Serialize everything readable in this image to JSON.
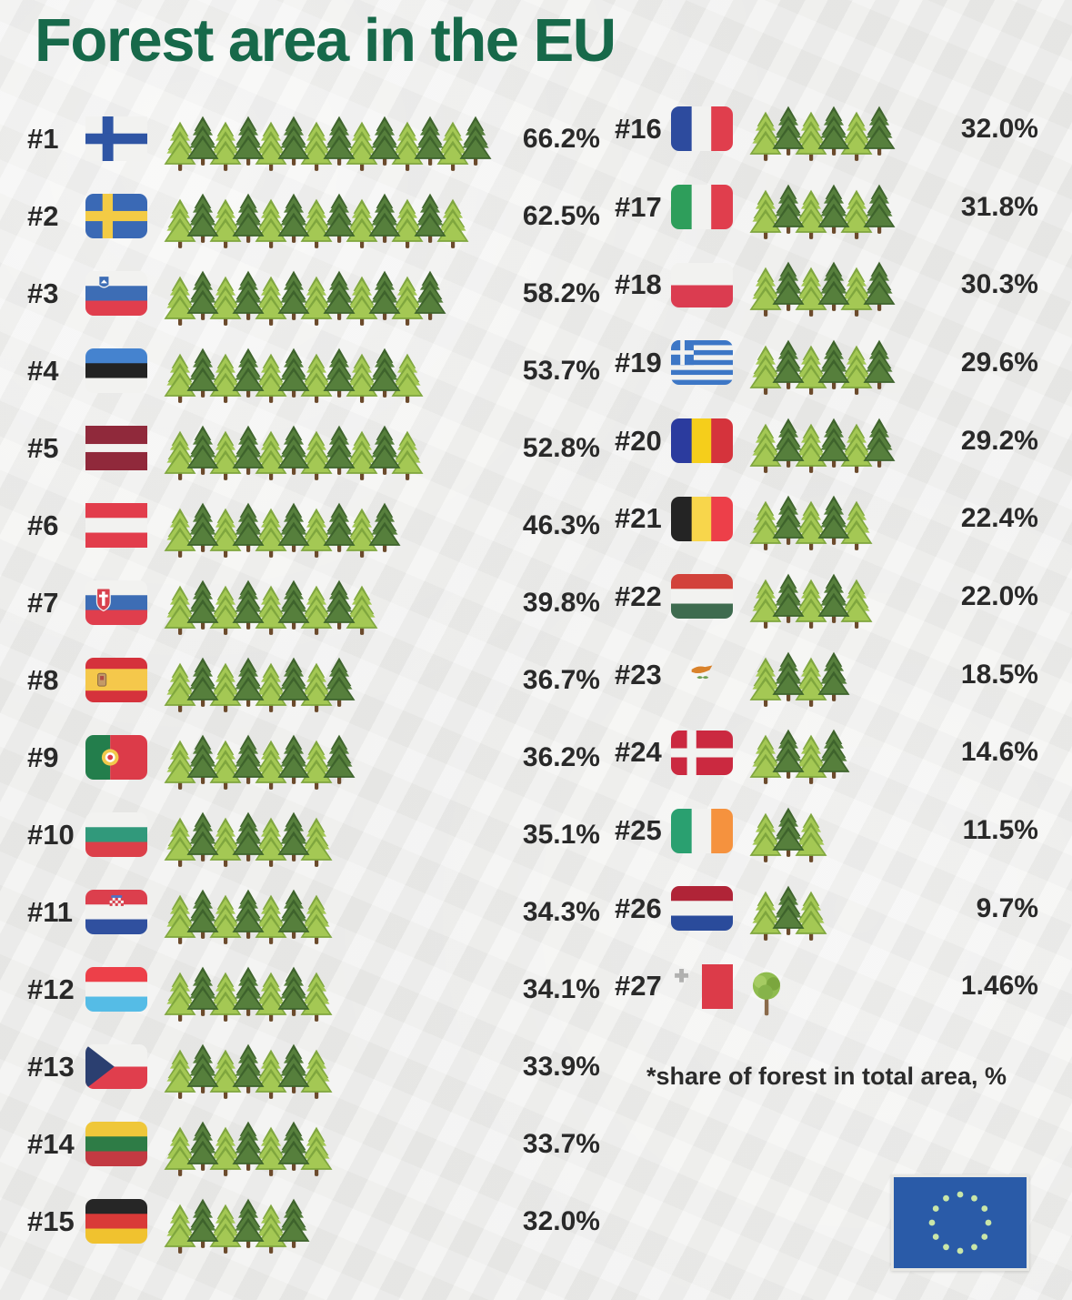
{
  "title": "Forest area in the EU",
  "footnote": "*share of forest in total area, %",
  "colors": {
    "title_green": "#17694A",
    "text_dark": "#292929",
    "background_paper": "#ECECEA",
    "eu_flag_blue": "#2A5BA8",
    "eu_star_color": "#C9E6A8",
    "tree_light_green": "#A4C854",
    "tree_dark_green": "#4F7C38"
  },
  "columns": {
    "left": [
      {
        "rank": "#1",
        "country": "Finland",
        "flag": "finland",
        "percent": "66.2%",
        "tree_count": 14,
        "tree_type": "evergreen"
      },
      {
        "rank": "#2",
        "country": "Sweden",
        "flag": "sweden",
        "percent": "62.5%",
        "tree_count": 13,
        "tree_type": "evergreen"
      },
      {
        "rank": "#3",
        "country": "Slovenia",
        "flag": "slovenia",
        "percent": "58.2%",
        "tree_count": 12,
        "tree_type": "evergreen"
      },
      {
        "rank": "#4",
        "country": "Estonia",
        "flag": "estonia",
        "percent": "53.7%",
        "tree_count": 11,
        "tree_type": "evergreen"
      },
      {
        "rank": "#5",
        "country": "Latvia",
        "flag": "latvia",
        "percent": "52.8%",
        "tree_count": 11,
        "tree_type": "evergreen"
      },
      {
        "rank": "#6",
        "country": "Austria",
        "flag": "austria",
        "percent": "46.3%",
        "tree_count": 10,
        "tree_type": "evergreen"
      },
      {
        "rank": "#7",
        "country": "Slovakia",
        "flag": "slovakia",
        "percent": "39.8%",
        "tree_count": 9,
        "tree_type": "evergreen"
      },
      {
        "rank": "#8",
        "country": "Spain",
        "flag": "spain",
        "percent": "36.7%",
        "tree_count": 8,
        "tree_type": "evergreen"
      },
      {
        "rank": "#9",
        "country": "Portugal",
        "flag": "portugal",
        "percent": "36.2%",
        "tree_count": 8,
        "tree_type": "evergreen"
      },
      {
        "rank": "#10",
        "country": "Bulgaria",
        "flag": "bulgaria",
        "percent": "35.1%",
        "tree_count": 7,
        "tree_type": "evergreen"
      },
      {
        "rank": "#11",
        "country": "Croatia",
        "flag": "croatia",
        "percent": "34.3%",
        "tree_count": 7,
        "tree_type": "evergreen"
      },
      {
        "rank": "#12",
        "country": "Luxembourg",
        "flag": "luxembourg",
        "percent": "34.1%",
        "tree_count": 7,
        "tree_type": "evergreen"
      },
      {
        "rank": "#13",
        "country": "Czechia",
        "flag": "czechia",
        "percent": "33.9%",
        "tree_count": 7,
        "tree_type": "evergreen"
      },
      {
        "rank": "#14",
        "country": "Lithuania",
        "flag": "lithuania",
        "percent": "33.7%",
        "tree_count": 7,
        "tree_type": "evergreen"
      },
      {
        "rank": "#15",
        "country": "Germany",
        "flag": "germany",
        "percent": "32.0%",
        "tree_count": 6,
        "tree_type": "evergreen"
      }
    ],
    "right": [
      {
        "rank": "#16",
        "country": "France",
        "flag": "france",
        "percent": "32.0%",
        "tree_count": 6,
        "tree_type": "evergreen"
      },
      {
        "rank": "#17",
        "country": "Italy",
        "flag": "italy",
        "percent": "31.8%",
        "tree_count": 6,
        "tree_type": "evergreen"
      },
      {
        "rank": "#18",
        "country": "Poland",
        "flag": "poland",
        "percent": "30.3%",
        "tree_count": 6,
        "tree_type": "evergreen"
      },
      {
        "rank": "#19",
        "country": "Greece",
        "flag": "greece",
        "percent": "29.6%",
        "tree_count": 6,
        "tree_type": "evergreen"
      },
      {
        "rank": "#20",
        "country": "Romania",
        "flag": "romania",
        "percent": "29.2%",
        "tree_count": 6,
        "tree_type": "evergreen"
      },
      {
        "rank": "#21",
        "country": "Belgium",
        "flag": "belgium",
        "percent": "22.4%",
        "tree_count": 5,
        "tree_type": "evergreen"
      },
      {
        "rank": "#22",
        "country": "Hungary",
        "flag": "hungary",
        "percent": "22.0%",
        "tree_count": 5,
        "tree_type": "evergreen"
      },
      {
        "rank": "#23",
        "country": "Cyprus",
        "flag": "cyprus",
        "percent": "18.5%",
        "tree_count": 4,
        "tree_type": "evergreen"
      },
      {
        "rank": "#24",
        "country": "Denmark",
        "flag": "denmark",
        "percent": "14.6%",
        "tree_count": 4,
        "tree_type": "evergreen"
      },
      {
        "rank": "#25",
        "country": "Ireland",
        "flag": "ireland",
        "percent": "11.5%",
        "tree_count": 3,
        "tree_type": "evergreen"
      },
      {
        "rank": "#26",
        "country": "Netherlands",
        "flag": "netherlands",
        "percent": "9.7%",
        "tree_count": 3,
        "tree_type": "evergreen"
      },
      {
        "rank": "#27",
        "country": "Malta",
        "flag": "malta",
        "percent": "1.46%",
        "tree_count": 1,
        "tree_type": "deciduous"
      }
    ]
  },
  "chart_data": {
    "type": "bar",
    "title": "Forest area in the EU",
    "note": "*share of forest in total area, %",
    "unit": "%",
    "categories": [
      "Finland",
      "Sweden",
      "Slovenia",
      "Estonia",
      "Latvia",
      "Austria",
      "Slovakia",
      "Spain",
      "Portugal",
      "Bulgaria",
      "Croatia",
      "Luxembourg",
      "Czechia",
      "Lithuania",
      "Germany",
      "France",
      "Italy",
      "Poland",
      "Greece",
      "Romania",
      "Belgium",
      "Hungary",
      "Cyprus",
      "Denmark",
      "Ireland",
      "Netherlands",
      "Malta"
    ],
    "values": [
      66.2,
      62.5,
      58.2,
      53.7,
      52.8,
      46.3,
      39.8,
      36.7,
      36.2,
      35.1,
      34.3,
      34.1,
      33.9,
      33.7,
      32.0,
      32.0,
      31.8,
      30.3,
      29.6,
      29.2,
      22.4,
      22.0,
      18.5,
      14.6,
      11.5,
      9.7,
      1.46
    ],
    "ranks": [
      "#1",
      "#2",
      "#3",
      "#4",
      "#5",
      "#6",
      "#7",
      "#8",
      "#9",
      "#10",
      "#11",
      "#12",
      "#13",
      "#14",
      "#15",
      "#16",
      "#17",
      "#18",
      "#19",
      "#20",
      "#21",
      "#22",
      "#23",
      "#24",
      "#25",
      "#26",
      "#27"
    ],
    "pictogram_icon": "evergreen-tree",
    "layout": "two-column ranked pictogram list"
  }
}
